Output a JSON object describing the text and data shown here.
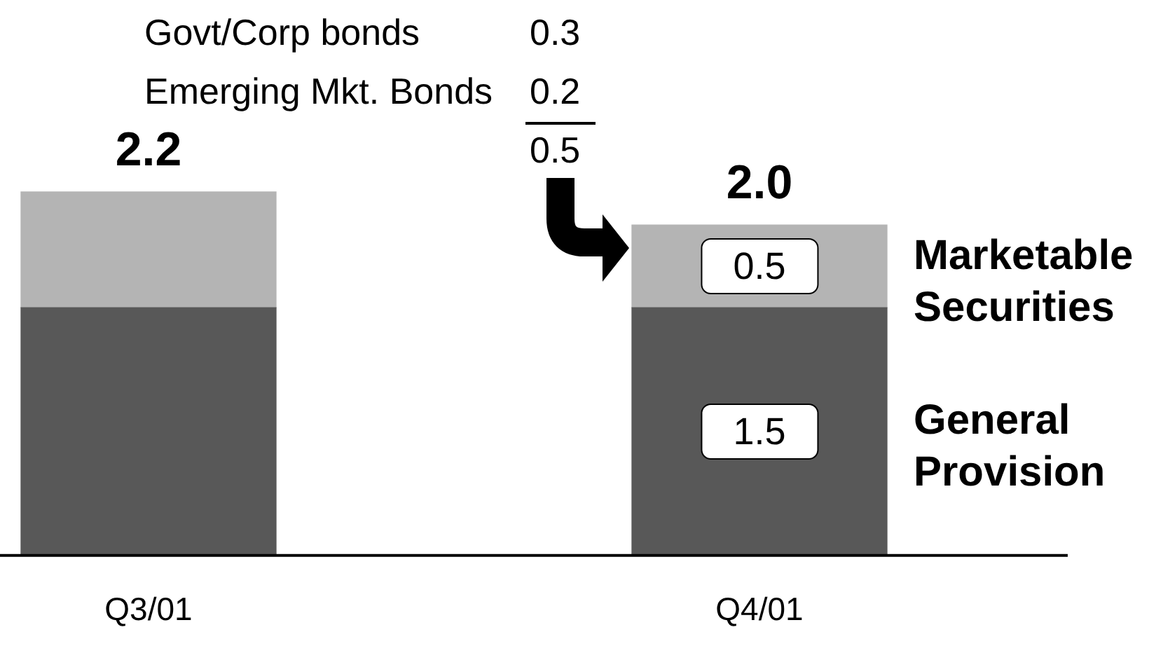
{
  "chart_data": {
    "type": "bar",
    "stacked": true,
    "categories": [
      "Q3/01",
      "Q4/01"
    ],
    "series": [
      {
        "name": "General Provision",
        "color": "#585858",
        "values": [
          1.5,
          1.5
        ],
        "value_labels": [
          null,
          "1.5"
        ]
      },
      {
        "name": "Marketable Securities",
        "color": "#b4b4b4",
        "values": [
          0.7,
          0.5
        ],
        "value_labels": [
          null,
          "0.5"
        ]
      }
    ],
    "totals": [
      "2.2",
      "2.0"
    ],
    "annotations": [
      "Govt/Corp bonds",
      "0.3",
      "Emerging Mkt. Bonds",
      "0.2",
      "0.5"
    ],
    "legend": "right",
    "tick_labels": "x"
  }
}
